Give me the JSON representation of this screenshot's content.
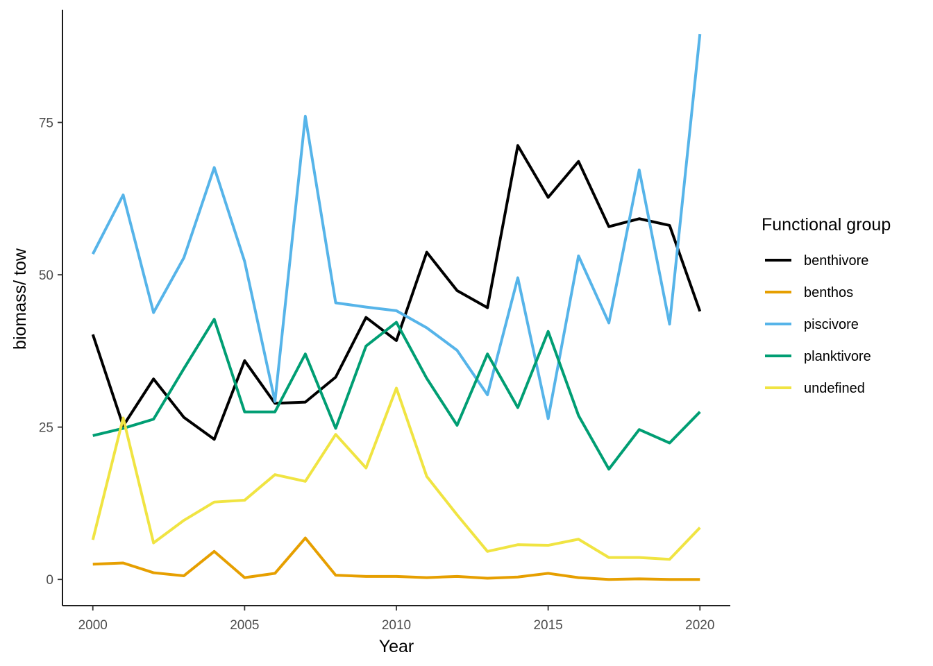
{
  "chart_data": {
    "type": "line",
    "xlabel": "Year",
    "ylabel": "biomass/ tow",
    "xlim": [
      1999,
      2021
    ],
    "ylim": [
      -4.3,
      93.5
    ],
    "x_ticks": [
      2000,
      2005,
      2010,
      2015,
      2020
    ],
    "y_ticks": [
      0,
      25,
      50,
      75
    ],
    "grid": false,
    "legend": {
      "title": "Functional group",
      "position": "right"
    },
    "x": [
      2000,
      2001,
      2002,
      2003,
      2004,
      2005,
      2006,
      2007,
      2008,
      2009,
      2010,
      2011,
      2012,
      2013,
      2014,
      2015,
      2016,
      2017,
      2018,
      2019,
      2020
    ],
    "series": [
      {
        "name": "benthivore",
        "color": "#000000",
        "values": [
          40.2,
          25.2,
          32.9,
          26.6,
          23.0,
          35.9,
          28.9,
          29.1,
          33.2,
          43.0,
          39.2,
          53.7,
          47.4,
          44.6,
          71.2,
          62.7,
          68.6,
          57.9,
          59.2,
          58.1,
          44.0
        ]
      },
      {
        "name": "benthos",
        "color": "#E69F00",
        "values": [
          2.5,
          2.7,
          1.1,
          0.6,
          4.6,
          0.3,
          1.0,
          6.8,
          0.7,
          0.5,
          0.5,
          0.3,
          0.5,
          0.2,
          0.4,
          1.0,
          0.3,
          0.0,
          0.1,
          0.0,
          0.0
        ]
      },
      {
        "name": "piscivore",
        "color": "#56B4E9",
        "values": [
          53.4,
          63.1,
          43.8,
          52.8,
          67.6,
          52.2,
          29.2,
          76.0,
          45.4,
          44.7,
          44.1,
          41.3,
          37.6,
          30.3,
          49.5,
          26.4,
          53.1,
          42.1,
          67.2,
          41.9,
          89.5
        ]
      },
      {
        "name": "planktivore",
        "color": "#009E73",
        "values": [
          23.6,
          24.8,
          26.3,
          34.6,
          42.7,
          27.5,
          27.5,
          37.0,
          24.8,
          38.3,
          42.2,
          33.0,
          25.3,
          37.0,
          28.2,
          40.7,
          26.9,
          18.1,
          24.6,
          22.4,
          27.5
        ]
      },
      {
        "name": "undefined",
        "color": "#F0E442",
        "values": [
          6.5,
          26.5,
          6.0,
          9.7,
          12.7,
          13.0,
          17.2,
          16.1,
          23.8,
          18.3,
          31.4,
          16.9,
          10.6,
          4.6,
          5.7,
          5.6,
          6.6,
          3.6,
          3.6,
          3.3,
          8.5
        ]
      }
    ]
  }
}
